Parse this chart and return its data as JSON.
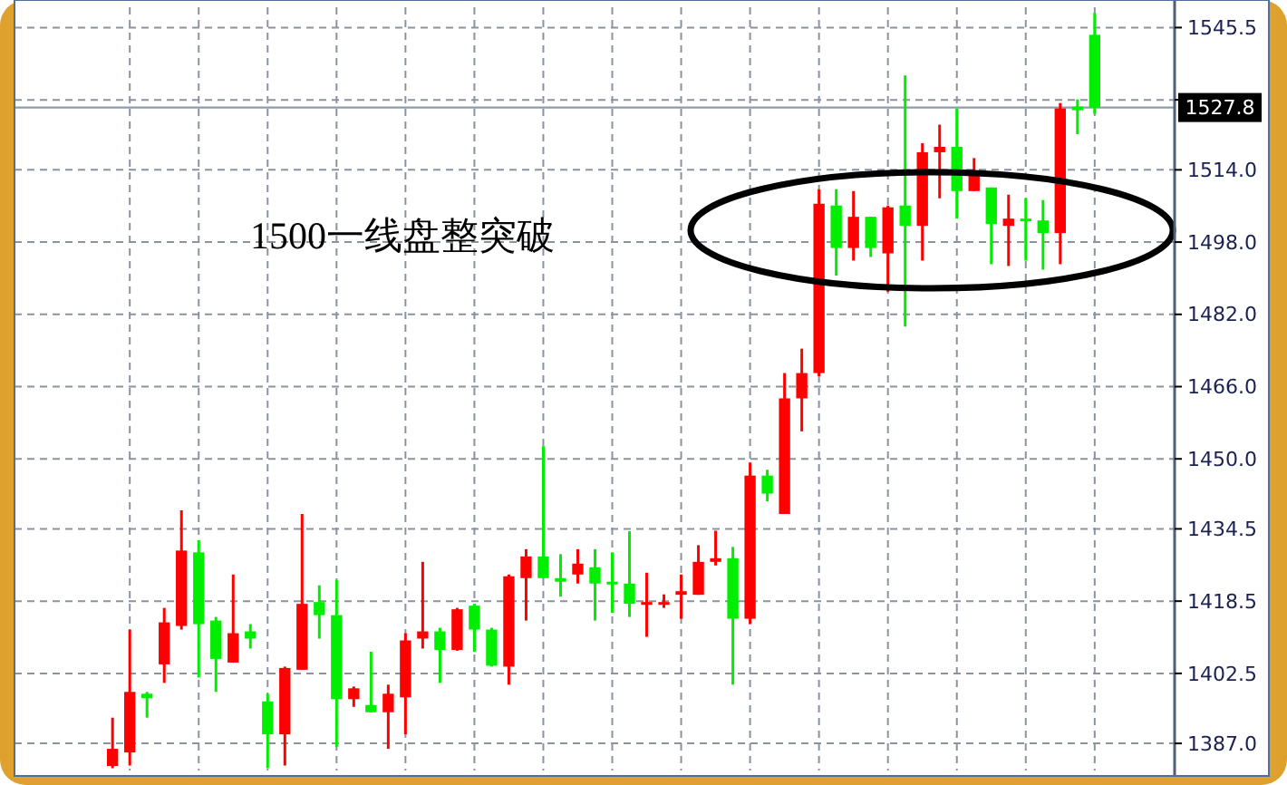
{
  "chart_data": {
    "type": "candlestick",
    "categories": [
      null,
      null,
      null,
      null,
      null,
      null,
      null,
      null,
      null,
      null,
      null,
      null,
      null,
      null,
      null,
      null,
      null,
      null,
      null,
      null,
      null,
      null,
      null,
      null,
      null,
      null,
      null,
      null,
      null,
      null,
      null,
      null,
      null,
      null,
      null,
      null,
      null,
      null,
      null,
      null,
      null,
      null,
      null,
      null,
      null,
      null,
      null,
      null,
      null,
      null,
      null,
      null,
      null,
      null,
      null,
      null,
      null,
      null
    ],
    "ohlc": [
      [
        1382,
        1392.7,
        1381.5,
        1385.8
      ],
      [
        1385,
        1412.2,
        1382.1,
        1398.4
      ],
      [
        1398,
        1398.4,
        1392.7,
        1397
      ],
      [
        1404.5,
        1417,
        1400.4,
        1413.8
      ],
      [
        1413,
        1438.6,
        1412.2,
        1429.7
      ],
      [
        1429.3,
        1432,
        1401.6,
        1413.4
      ],
      [
        1414.2,
        1415,
        1398.4,
        1405.7
      ],
      [
        1404.9,
        1424.4,
        1404.9,
        1411.4
      ],
      [
        1411.8,
        1413.4,
        1408,
        1410.2
      ],
      [
        1396.3,
        1398,
        1381.5,
        1389
      ],
      [
        1389,
        1404,
        1382.1,
        1403.7
      ],
      [
        1403.3,
        1437.8,
        1403.3,
        1417.9
      ],
      [
        1418.3,
        1422,
        1410.2,
        1415.4
      ],
      [
        1415.4,
        1423.2,
        1386.2,
        1396.8
      ],
      [
        1396.8,
        1399.6,
        1395.1,
        1399.2
      ],
      [
        1395.5,
        1407.3,
        1393.9,
        1393.9
      ],
      [
        1393.9,
        1400,
        1385.8,
        1398
      ],
      [
        1397.2,
        1411.4,
        1389,
        1409.8
      ],
      [
        1410.2,
        1427.2,
        1408,
        1411.8
      ],
      [
        1411.8,
        1412.6,
        1400.4,
        1407.7
      ],
      [
        1407.7,
        1417,
        1407.5,
        1416.7
      ],
      [
        1417.5,
        1417.9,
        1407.3,
        1412.2
      ],
      [
        1412.2,
        1412.6,
        1404,
        1404.2
      ],
      [
        1404,
        1424.4,
        1400,
        1424
      ],
      [
        1423.6,
        1430,
        1414.2,
        1428.4
      ],
      [
        1428.4,
        1452.8,
        1423.6,
        1423.6
      ],
      [
        1423.6,
        1428.9,
        1419.5,
        1422.8
      ],
      [
        1424.4,
        1430,
        1422.4,
        1426.8
      ],
      [
        1426,
        1430,
        1414.2,
        1422.4
      ],
      [
        1422.8,
        1429.3,
        1415.9,
        1422.4
      ],
      [
        1422.4,
        1434,
        1415,
        1417.9
      ],
      [
        1417.9,
        1424.8,
        1410.6,
        1418.3
      ],
      [
        1418,
        1420,
        1417,
        1418.3
      ],
      [
        1419.9,
        1424.4,
        1414.6,
        1420.7
      ],
      [
        1419.9,
        1430.9,
        1419.9,
        1427.2
      ],
      [
        1427.2,
        1434.1,
        1426.4,
        1428
      ],
      [
        1428,
        1430.5,
        1400,
        1414.6
      ],
      [
        1414.6,
        1449.2,
        1413.4,
        1446.3
      ],
      [
        1446.3,
        1447.6,
        1440.6,
        1442.3
      ],
      [
        1437.8,
        1469,
        1437.8,
        1463.4
      ],
      [
        1463.4,
        1474.4,
        1456.1,
        1469
      ],
      [
        1469,
        1509.7,
        1468.3,
        1506.5
      ],
      [
        1506.1,
        1509.7,
        1490.6,
        1496.7
      ],
      [
        1496.7,
        1509.3,
        1493.9,
        1503.6
      ],
      [
        1503.6,
        1503.6,
        1494.7,
        1496.7
      ],
      [
        1495.5,
        1506.1,
        1487,
        1505.7
      ],
      [
        1506.1,
        1534.9,
        1479.3,
        1501.6
      ],
      [
        1501.6,
        1519.9,
        1493.9,
        1517.9
      ],
      [
        1517.9,
        1524,
        1507.7,
        1519.1
      ],
      [
        1519.1,
        1527.6,
        1503.2,
        1509.3
      ],
      [
        1509.3,
        1516.6,
        1509.3,
        1513.8
      ],
      [
        1510.1,
        1510.1,
        1493.1,
        1502
      ],
      [
        1501.6,
        1508.5,
        1492.7,
        1503.2
      ],
      [
        1503.2,
        1507.7,
        1493.9,
        1502.8
      ],
      [
        1502.8,
        1507.3,
        1491.9,
        1500
      ],
      [
        1500,
        1528.8,
        1493.1,
        1527.6
      ],
      [
        1528,
        1529.6,
        1521.9,
        1527.2
      ],
      [
        1543.9,
        1548.7,
        1526.4,
        1527.8
      ]
    ],
    "colors": [
      "#ff0000",
      "#ff0000",
      "#00ee00",
      "#ff0000",
      "#ff0000",
      "#00ee00",
      "#00ee00",
      "#ff0000",
      "#00ee00",
      "#00ee00",
      "#ff0000",
      "#ff0000",
      "#00ee00",
      "#00ee00",
      "#ff0000",
      "#00ee00",
      "#ff0000",
      "#ff0000",
      "#ff0000",
      "#00ee00",
      "#ff0000",
      "#00ee00",
      "#00ee00",
      "#ff0000",
      "#ff0000",
      "#00ee00",
      "#00ee00",
      "#ff0000",
      "#00ee00",
      "#00ee00",
      "#00ee00",
      "#ff0000",
      "#ff0000",
      "#ff0000",
      "#ff0000",
      "#ff0000",
      "#00ee00",
      "#ff0000",
      "#00ee00",
      "#ff0000",
      "#ff0000",
      "#ff0000",
      "#00ee00",
      "#ff0000",
      "#00ee00",
      "#ff0000",
      "#00ee00",
      "#ff0000",
      "#ff0000",
      "#00ee00",
      "#ff0000",
      "#00ee00",
      "#ff0000",
      "#00ee00",
      "#00ee00",
      "#ff0000",
      "#00ee00",
      "#00ee00"
    ],
    "ylim": [
      1381,
      1550
    ],
    "yticks": [
      {
        "value": 1387,
        "label": "1387.0"
      },
      {
        "value": 1402.5,
        "label": "1402.5"
      },
      {
        "value": 1418.5,
        "label": "1418.5"
      },
      {
        "value": 1434.5,
        "label": "1434.5"
      },
      {
        "value": 1450,
        "label": "1450.0"
      },
      {
        "value": 1466,
        "label": "1466.0"
      },
      {
        "value": 1482,
        "label": "1482.0"
      },
      {
        "value": 1498,
        "label": "1498.0"
      },
      {
        "value": 1514,
        "label": "1514.0"
      },
      {
        "value": 1529.5,
        "label": null
      },
      {
        "value": 1545.5,
        "label": "1545.5"
      }
    ],
    "grid": true,
    "tick_labels": "y",
    "ref_lines": [
      {
        "axis": "y",
        "value": 1527.8,
        "label": "1527.8",
        "color": "#8c9cb0"
      }
    ],
    "annotations": [
      "1500一线盘整突破"
    ]
  }
}
